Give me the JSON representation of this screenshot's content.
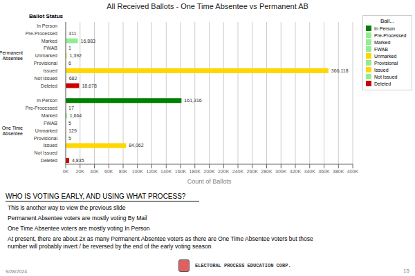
{
  "chart_data": {
    "type": "bar",
    "orientation": "horizontal",
    "title": "All Received Ballots - One Time Absentee vs Permanent AB",
    "xlabel": "Count of Ballots",
    "category_header": "Ballot Status",
    "categories": [
      "In Person",
      "Pre-Processed",
      "Marked",
      "FWAB",
      "Unmarked",
      "Provisional",
      "Issued",
      "Not Issued",
      "Deleted"
    ],
    "colors": [
      "#008000",
      "#90EE90",
      "#90EE90",
      "#90EE90",
      "#FFD700",
      "#90EE90",
      "#FFD700",
      "#90EE90",
      "#CC0000"
    ],
    "groups": [
      {
        "name": "Permanent\nAbsentee",
        "values": [
          0,
          311,
          16883,
          1,
          1392,
          6,
          366118,
          682,
          18678
        ],
        "value_labels": [
          null,
          "311",
          "16,883",
          "1",
          "1,392",
          "6",
          "366,118",
          "682",
          "18,678"
        ]
      },
      {
        "name": "One Time\nAbsentee",
        "values": [
          161316,
          17,
          1664,
          5,
          129,
          5,
          84062,
          0,
          4835
        ],
        "value_labels": [
          "161,316",
          "17",
          "1,664",
          "5",
          "129",
          "5",
          "84,062",
          null,
          "4,835"
        ]
      }
    ],
    "xlim": [
      0,
      400000
    ],
    "xticks": [
      {
        "value": 0,
        "label": "0K"
      },
      {
        "value": 20000,
        "label": "20K"
      },
      {
        "value": 40000,
        "label": "40K"
      },
      {
        "value": 60000,
        "label": "60K"
      },
      {
        "value": 80000,
        "label": "80K"
      },
      {
        "value": 100000,
        "label": "100K"
      },
      {
        "value": 120000,
        "label": "120K"
      },
      {
        "value": 140000,
        "label": "140K"
      },
      {
        "value": 160000,
        "label": "160K"
      },
      {
        "value": 180000,
        "label": "180K"
      },
      {
        "value": 200000,
        "label": "200K"
      },
      {
        "value": 220000,
        "label": "220K"
      },
      {
        "value": 240000,
        "label": "240K"
      },
      {
        "value": 260000,
        "label": "260K"
      },
      {
        "value": 280000,
        "label": "280K"
      },
      {
        "value": 300000,
        "label": "300K"
      },
      {
        "value": 320000,
        "label": "320K"
      },
      {
        "value": 340000,
        "label": "340K"
      },
      {
        "value": 360000,
        "label": "360K"
      },
      {
        "value": 380000,
        "label": "380K"
      },
      {
        "value": 400000,
        "label": "400K"
      }
    ],
    "grid": true,
    "data_labels": true,
    "legend": "upper right",
    "legend_title": "Ball...",
    "annotations": {
      "header": "WHO IS VOTING EARLY, AND USING WHAT PROCESS?",
      "bullets": [
        "This is another way to view the previous slide",
        "Permanent Absentee voters are mostly voting By Mail",
        "One Time Absentee voters are mostly voting In Person",
        "At present, there are about 2x as many Permanent Absentee voters as there are One Time Absentee voters but those\nnumber will probably invert / be reversed by the end of the early voting season"
      ],
      "date": "9/28/2024",
      "page_number": "15",
      "logo": "ELECTORAL PROCESS EDUCATION CORP."
    }
  }
}
